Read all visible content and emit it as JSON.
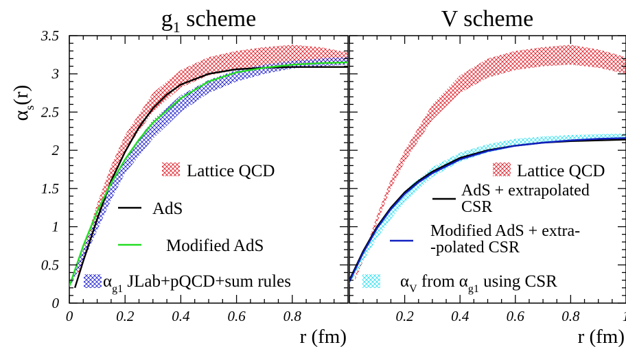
{
  "figure": {
    "y_axis_label": "α",
    "y_axis_label_sub": "s",
    "y_axis_label_tail": "(r)"
  },
  "chart_data": [
    {
      "type": "line",
      "title": "g",
      "title_sub": "1",
      "title_tail": " scheme",
      "xlabel": "r (fm)",
      "ylabel": "αs(r)",
      "xlim": [
        0,
        1.0
      ],
      "ylim": [
        0,
        3.5
      ],
      "x_ticks": [
        "0",
        "0.2",
        "0.4",
        "0.6",
        "0.8"
      ],
      "y_ticks": [
        "0",
        "0.5",
        "1",
        "1.5",
        "2",
        "2.5",
        "3",
        "3.5"
      ],
      "grid": false,
      "series": [
        {
          "name": "Lattice QCD",
          "kind": "band",
          "color": "#e0202a",
          "x": [
            0.03,
            0.05,
            0.1,
            0.15,
            0.2,
            0.3,
            0.4,
            0.5,
            0.6,
            0.7,
            0.8,
            0.9,
            1.0
          ],
          "low": [
            0.35,
            0.55,
            1.1,
            1.6,
            2.0,
            2.5,
            2.82,
            2.98,
            3.05,
            3.08,
            3.12,
            3.13,
            3.12
          ],
          "high": [
            0.45,
            0.7,
            1.3,
            1.8,
            2.2,
            2.75,
            3.05,
            3.22,
            3.3,
            3.35,
            3.38,
            3.35,
            3.28
          ]
        },
        {
          "name": "JLab+pQCD+sum rules",
          "kind": "band",
          "color": "#2020d0",
          "x": [
            0.0,
            0.05,
            0.1,
            0.15,
            0.2,
            0.3,
            0.4,
            0.5,
            0.6,
            0.7,
            0.8,
            0.9,
            1.0
          ],
          "low": [
            0.2,
            0.55,
            0.95,
            1.35,
            1.7,
            2.15,
            2.5,
            2.75,
            2.9,
            3.0,
            3.07,
            3.1,
            3.12
          ],
          "high": [
            0.25,
            0.7,
            1.15,
            1.55,
            1.9,
            2.4,
            2.72,
            2.92,
            3.05,
            3.12,
            3.17,
            3.2,
            3.22
          ]
        },
        {
          "name": "AdS",
          "kind": "line",
          "color": "#000000",
          "x": [
            0.02,
            0.05,
            0.1,
            0.15,
            0.2,
            0.25,
            0.3,
            0.35,
            0.4,
            0.5,
            0.6,
            0.7,
            0.8,
            0.9,
            1.0
          ],
          "y": [
            0.2,
            0.55,
            1.1,
            1.6,
            1.98,
            2.3,
            2.55,
            2.73,
            2.86,
            3.0,
            3.06,
            3.08,
            3.09,
            3.09,
            3.09
          ]
        },
        {
          "name": "Modified AdS",
          "kind": "line",
          "color": "#22dd22",
          "x": [
            0.0,
            0.05,
            0.1,
            0.15,
            0.2,
            0.25,
            0.3,
            0.4,
            0.5,
            0.6,
            0.7,
            0.8,
            0.9,
            1.0
          ],
          "y": [
            0.22,
            0.75,
            1.2,
            1.57,
            1.88,
            2.14,
            2.36,
            2.68,
            2.9,
            3.02,
            3.08,
            3.12,
            3.14,
            3.15
          ]
        }
      ],
      "legend": [
        {
          "label": "Lattice QCD",
          "kind": "band",
          "color": "#e0202a"
        },
        {
          "label": "AdS",
          "kind": "line",
          "color": "#000000"
        },
        {
          "label": "Modified AdS",
          "kind": "line",
          "color": "#22dd22"
        },
        {
          "label_main": "α",
          "label_sub": "g1",
          "label_tail": " JLab+pQCD+sum rules",
          "kind": "band",
          "color": "#2020d0"
        }
      ],
      "legend_placement": "lower-right"
    },
    {
      "type": "line",
      "title": "V scheme",
      "xlabel": "r (fm)",
      "xlim": [
        0,
        1.0
      ],
      "ylim": [
        0,
        3.5
      ],
      "x_ticks": [
        "0.2",
        "0.4",
        "0.6",
        "0.8",
        "1"
      ],
      "grid": false,
      "series": [
        {
          "name": "Lattice QCD",
          "kind": "band",
          "color": "#e0202a",
          "x": [
            0.02,
            0.05,
            0.1,
            0.15,
            0.2,
            0.3,
            0.4,
            0.5,
            0.6,
            0.7,
            0.8,
            0.9,
            1.0
          ],
          "low": [
            0.3,
            0.55,
            1.05,
            1.5,
            1.85,
            2.4,
            2.75,
            2.95,
            3.05,
            3.1,
            3.12,
            3.08,
            3.0
          ],
          "high": [
            0.35,
            0.6,
            1.15,
            1.62,
            2.0,
            2.6,
            2.98,
            3.2,
            3.3,
            3.35,
            3.38,
            3.32,
            3.22
          ]
        },
        {
          "name": "αV from αg1 using CSR",
          "kind": "band",
          "color": "#33e0f0",
          "x": [
            0.0,
            0.05,
            0.1,
            0.15,
            0.2,
            0.3,
            0.4,
            0.5,
            0.6,
            0.7,
            0.8,
            0.9,
            1.0
          ],
          "low": [
            0.25,
            0.55,
            0.85,
            1.1,
            1.32,
            1.65,
            1.85,
            1.97,
            2.05,
            2.1,
            2.13,
            2.14,
            2.15
          ],
          "high": [
            0.3,
            0.65,
            0.98,
            1.25,
            1.47,
            1.78,
            1.97,
            2.08,
            2.15,
            2.18,
            2.2,
            2.21,
            2.22
          ]
        },
        {
          "name": "AdS + extrapolated CSR",
          "kind": "line",
          "color": "#000000",
          "x": [
            0.0,
            0.05,
            0.1,
            0.15,
            0.2,
            0.25,
            0.3,
            0.4,
            0.5,
            0.6,
            0.7,
            0.8,
            0.9,
            1.0
          ],
          "y": [
            0.3,
            0.68,
            1.0,
            1.25,
            1.45,
            1.6,
            1.72,
            1.9,
            2.0,
            2.06,
            2.1,
            2.12,
            2.13,
            2.14
          ]
        },
        {
          "name": "Modified AdS + extra-polated CSR",
          "kind": "line",
          "color": "#1020c0",
          "x": [
            0.0,
            0.05,
            0.1,
            0.15,
            0.2,
            0.25,
            0.3,
            0.4,
            0.5,
            0.6,
            0.7,
            0.8,
            0.9,
            1.0
          ],
          "y": [
            0.28,
            0.66,
            0.98,
            1.23,
            1.43,
            1.58,
            1.7,
            1.88,
            1.99,
            2.06,
            2.1,
            2.13,
            2.15,
            2.16
          ]
        }
      ],
      "legend": [
        {
          "label": "Lattice QCD",
          "kind": "band",
          "color": "#e0202a"
        },
        {
          "label_l1": "AdS + extrapolated",
          "label_l2": "CSR",
          "kind": "line",
          "color": "#000000"
        },
        {
          "label_l1": "Modified AdS + extra-",
          "label_l2": "-polated CSR",
          "kind": "line",
          "color": "#1020c0"
        },
        {
          "label_main": "α",
          "label_sub1": "V",
          "label_mid": " from α",
          "label_sub2": "g1",
          "label_tail": " using CSR",
          "kind": "band",
          "color": "#33e0f0"
        }
      ],
      "legend_placement": "lower-right"
    }
  ]
}
